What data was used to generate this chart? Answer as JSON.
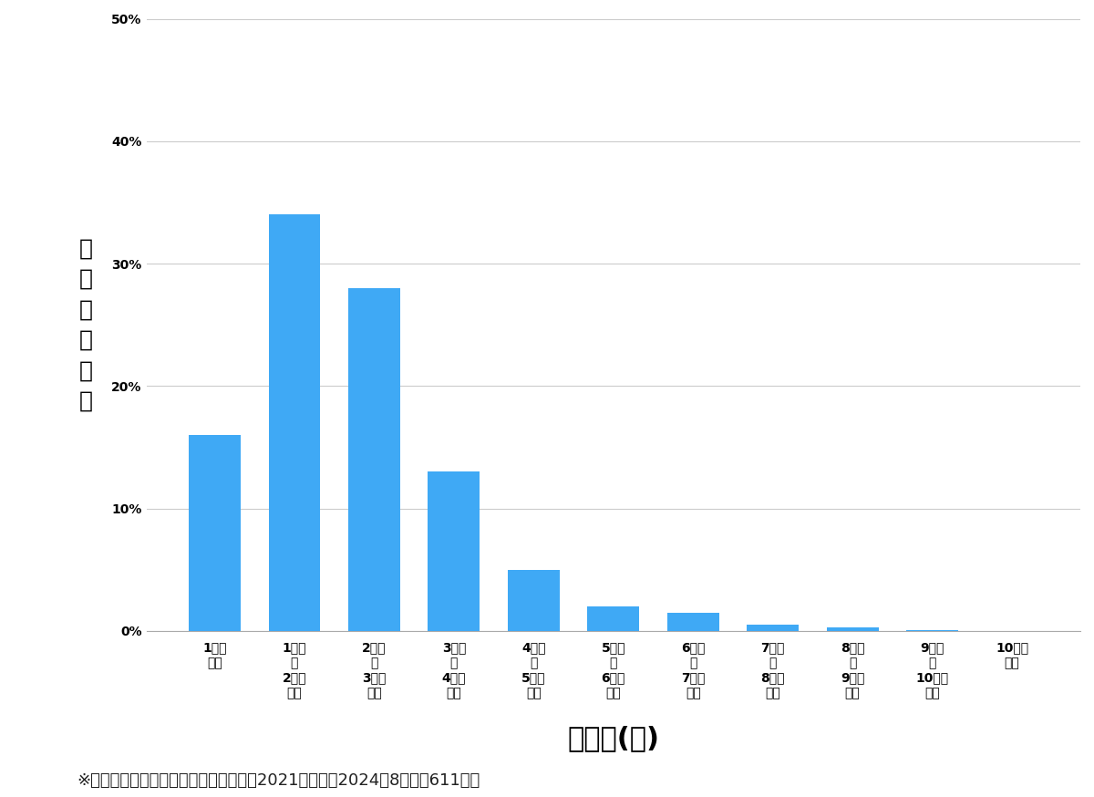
{
  "values": [
    0.16,
    0.34,
    0.28,
    0.13,
    0.05,
    0.02,
    0.015,
    0.005,
    0.003,
    0.001,
    0.0
  ],
  "categories": [
    "1万円\n未満",
    "1万円\n〜\n2万円\n未満",
    "2万円\n〜\n3万円\n未満",
    "3万円\n〜\n4万円\n未満",
    "4万円\n〜\n5万円\n未満",
    "5万円\n〜\n6万円\n未満",
    "6万円\n〜\n7万円\n未満",
    "7万円\n〜\n8万円\n未満",
    "8万円\n〜\n9万円\n未満",
    "9万円\n〜\n10万円\n未満",
    "10万円\n以上"
  ],
  "bar_color": "#3fa9f5",
  "background_color": "#ffffff",
  "ylabel_chars": [
    "価",
    "格",
    "帯",
    "の",
    "割",
    "合"
  ],
  "xlabel": "価格帯(円)",
  "footnote": "※弊社受付の案件を対象に集計（期間：2021年１月〜2024年8月、計611件）",
  "ylim": [
    0,
    0.5
  ],
  "yticks": [
    0.0,
    0.1,
    0.2,
    0.3,
    0.4,
    0.5
  ],
  "ytick_labels": [
    "0%",
    "10%",
    "20%",
    "30%",
    "40%",
    "50%"
  ],
  "xlabel_fontsize": 22,
  "ylabel_fontsize": 18,
  "ytick_fontsize": 20,
  "xtick_fontsize": 13,
  "footnote_fontsize": 13
}
